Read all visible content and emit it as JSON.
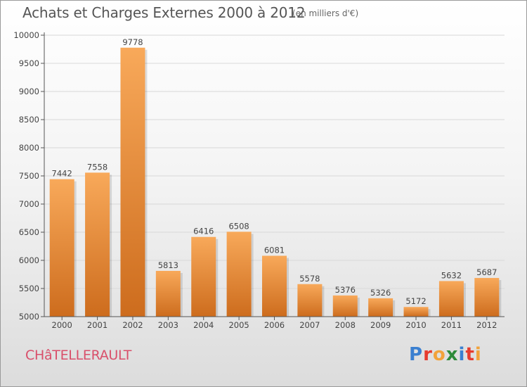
{
  "header": {
    "title": "Achats et Charges Externes 2000 à 2012",
    "subtitle": "(en milliers d'€)"
  },
  "footer": {
    "town": "CHâTELLERAULT",
    "logo_letters": [
      "P",
      "r",
      "o",
      "x",
      "i",
      "t",
      "i"
    ],
    "logo_colors": [
      "#3a7fd0",
      "#e63b2e",
      "#f2a23a",
      "#2e8b3a",
      "#3a7fd0",
      "#e63b2e",
      "#f2a23a"
    ]
  },
  "colors": {
    "bar_top": "#f8a95a",
    "bar_bottom": "#cd6c1d",
    "axis": "#555555",
    "grid": "#d8d8d8"
  },
  "chart_data": {
    "type": "bar",
    "title": "Achats et Charges Externes 2000 à 2012",
    "subtitle": "(en milliers d'€)",
    "xlabel": "",
    "ylabel": "",
    "categories": [
      "2000",
      "2001",
      "2002",
      "2003",
      "2004",
      "2005",
      "2006",
      "2007",
      "2008",
      "2009",
      "2010",
      "2011",
      "2012"
    ],
    "values": [
      7442,
      7558,
      9778,
      5813,
      6416,
      6508,
      6081,
      5578,
      5376,
      5326,
      5172,
      5632,
      5687
    ],
    "ylim": [
      5000,
      10000
    ],
    "yticks": [
      5000,
      5500,
      6000,
      6500,
      7000,
      7500,
      8000,
      8500,
      9000,
      9500,
      10000
    ],
    "grid": true,
    "legend": "none"
  }
}
